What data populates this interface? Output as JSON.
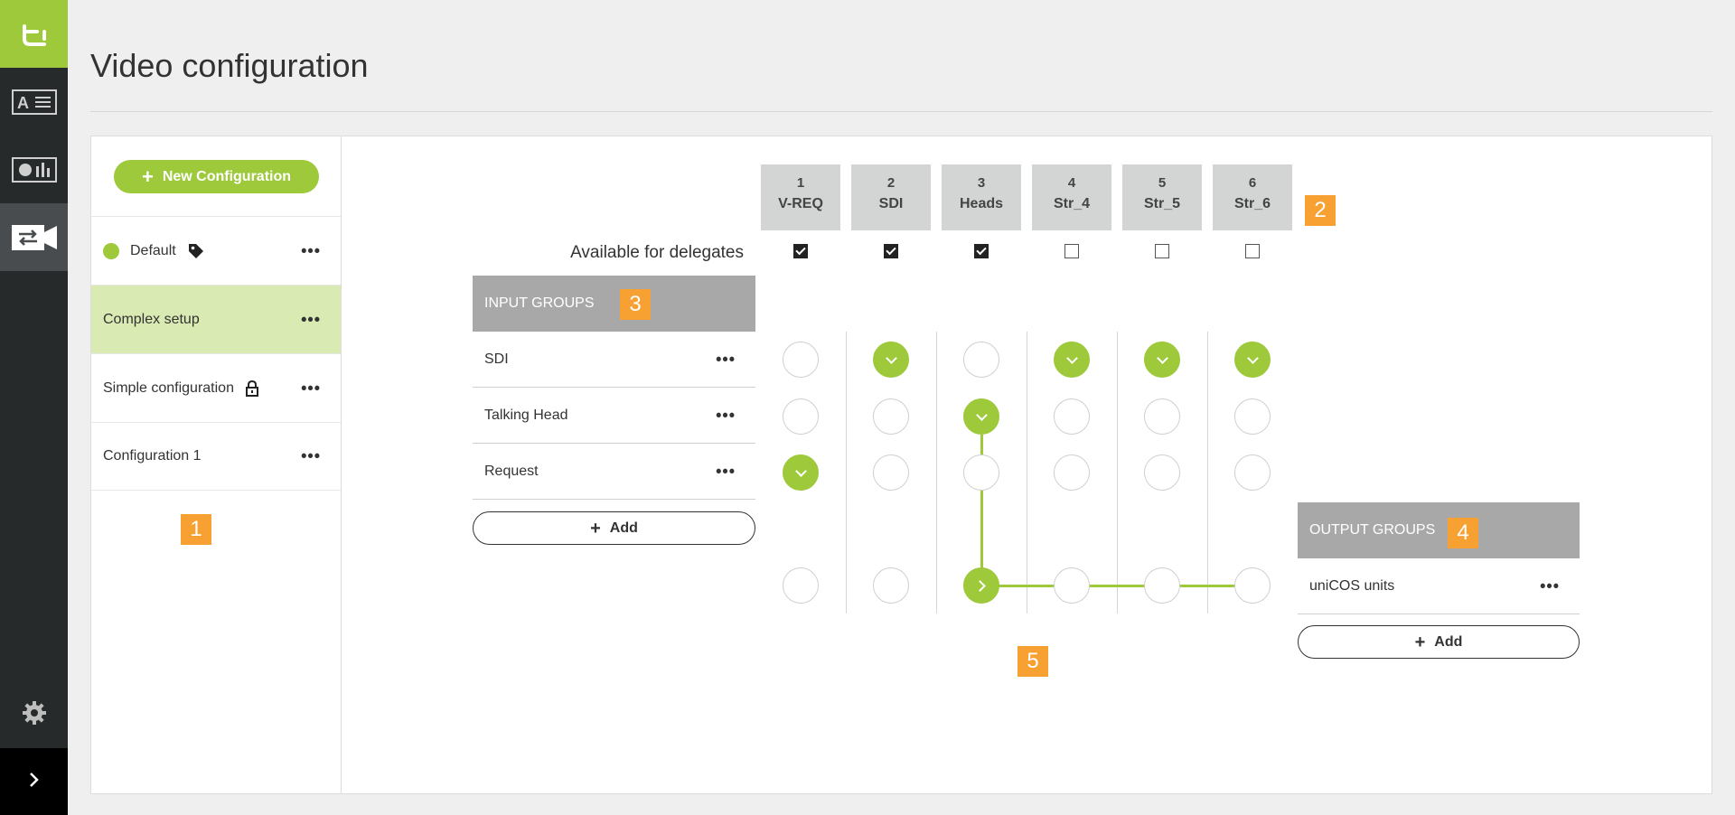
{
  "app": {
    "logo_icon": "tc-logo-icon",
    "nav_items": [
      {
        "icon": "text-editor-icon"
      },
      {
        "icon": "dashboard-chart-icon"
      },
      {
        "icon": "video-routing-icon",
        "active": true
      }
    ],
    "settings_icon": "gear-icon",
    "expand_icon": "chevron-right-icon"
  },
  "page": {
    "title": "Video configuration"
  },
  "configurations": {
    "new_button": "New Configuration",
    "items": [
      {
        "label": "Default",
        "status": "green-dot",
        "icon": "tag-icon",
        "selected": false
      },
      {
        "label": "Complex setup",
        "selected": true
      },
      {
        "label": "Simple configuration",
        "icon": "lock-icon",
        "selected": false
      },
      {
        "label": "Configuration 1",
        "selected": false
      }
    ],
    "more": "•••"
  },
  "badges": [
    "1",
    "2",
    "3",
    "4",
    "5"
  ],
  "columns": [
    {
      "num": "1",
      "label": "V-REQ",
      "available": true
    },
    {
      "num": "2",
      "label": "SDI",
      "available": true
    },
    {
      "num": "3",
      "label": "Heads",
      "available": true
    },
    {
      "num": "4",
      "label": "Str_4",
      "available": false
    },
    {
      "num": "5",
      "label": "Str_5",
      "available": false
    },
    {
      "num": "6",
      "label": "Str_6",
      "available": false
    }
  ],
  "available_label": "Available for delegates",
  "input_groups": {
    "header": "INPUT GROUPS",
    "rows": [
      {
        "label": "SDI",
        "assigned": [
          false,
          true,
          false,
          true,
          true,
          true
        ]
      },
      {
        "label": "Talking Head",
        "assigned": [
          false,
          false,
          true,
          false,
          false,
          false
        ]
      },
      {
        "label": "Request",
        "assigned": [
          true,
          false,
          false,
          false,
          false,
          false
        ]
      }
    ],
    "add_label": "Add"
  },
  "output_groups": {
    "header": "OUTPUT GROUPS",
    "rows": [
      {
        "label": "uniCOS units",
        "assigned": [
          false,
          false,
          true,
          false,
          false,
          false
        ]
      }
    ],
    "add_label": "Add"
  },
  "colors": {
    "accent": "#9dc93b",
    "badge": "#f7a133",
    "nav": "#272a2b"
  }
}
